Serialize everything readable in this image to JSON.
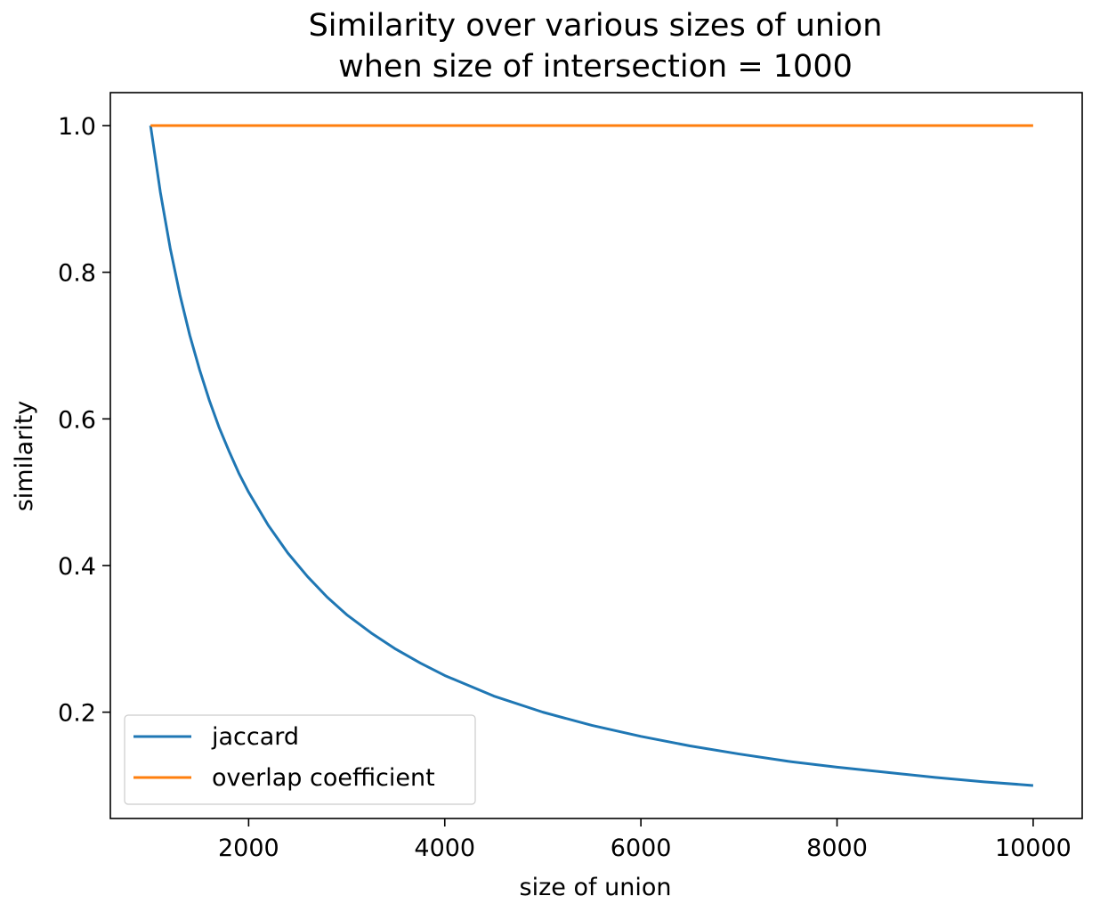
{
  "chart_data": {
    "type": "line",
    "title_lines": [
      "Similarity over various sizes of union",
      "when size of intersection = 1000"
    ],
    "xlabel": "size of union",
    "ylabel": "similarity",
    "xlim": [
      590,
      10500
    ],
    "ylim": [
      0.055,
      1.045
    ],
    "xticks": [
      2000,
      4000,
      6000,
      8000,
      10000
    ],
    "xtick_labels": [
      "2000",
      "4000",
      "6000",
      "8000",
      "10000"
    ],
    "yticks": [
      0.2,
      0.4,
      0.6,
      0.8,
      1.0
    ],
    "ytick_labels": [
      "0.2",
      "0.4",
      "0.6",
      "0.8",
      "1.0"
    ],
    "grid": false,
    "legend_position": "lower-left",
    "series": [
      {
        "name": "jaccard",
        "color": "#1f77b4",
        "x": [
          1000,
          1100,
          1200,
          1300,
          1400,
          1500,
          1600,
          1700,
          1800,
          1900,
          2000,
          2200,
          2400,
          2600,
          2800,
          3000,
          3250,
          3500,
          3750,
          4000,
          4500,
          5000,
          5500,
          6000,
          6500,
          7000,
          7500,
          8000,
          8500,
          9000,
          9500,
          10000
        ],
        "values": [
          1.0,
          0.909,
          0.833,
          0.769,
          0.714,
          0.667,
          0.625,
          0.588,
          0.556,
          0.526,
          0.5,
          0.455,
          0.417,
          0.385,
          0.357,
          0.333,
          0.308,
          0.286,
          0.267,
          0.25,
          0.222,
          0.2,
          0.182,
          0.167,
          0.154,
          0.143,
          0.133,
          0.125,
          0.118,
          0.111,
          0.105,
          0.1
        ]
      },
      {
        "name": "overlap coefficient",
        "color": "#ff7f0e",
        "x": [
          1000,
          10000
        ],
        "values": [
          1.0,
          1.0
        ]
      }
    ]
  }
}
